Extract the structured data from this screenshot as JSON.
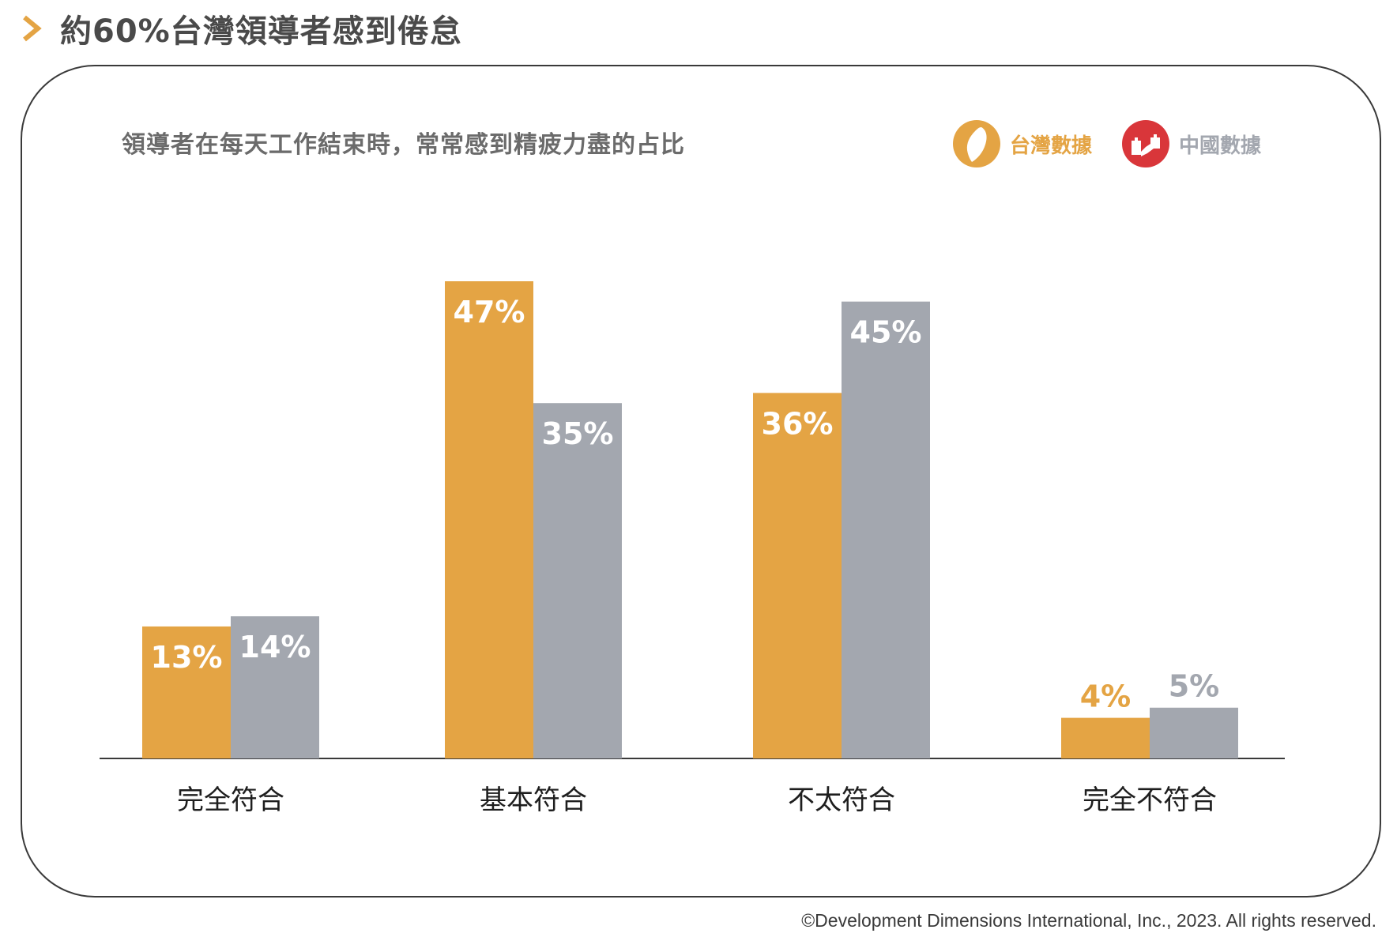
{
  "page_title": "約60%台灣領導者感到倦怠",
  "footer": {
    "copyright": "©Development Dimensions International, Inc., 2023. All rights reserved."
  },
  "icons": {
    "title_marker": "chevron-right-icon",
    "taiwan": "taiwan-map-icon",
    "china": "great-wall-icon"
  },
  "colors": {
    "taiwan": "#E4A444",
    "china": "#A3A7AF",
    "china_icon": "#D9363A",
    "axis": "#3a3a3a"
  },
  "chart_data": {
    "type": "bar",
    "title": "領導者在每天工作結束時，常常感到精疲力盡的占比",
    "xlabel": "",
    "ylabel": "",
    "categories": [
      "完全符合",
      "基本符合",
      "不太符合",
      "完全不符合"
    ],
    "series": [
      {
        "name": "台灣數據",
        "values": [
          13,
          47,
          36,
          4
        ],
        "labels": [
          "13%",
          "47%",
          "36%",
          "4%"
        ]
      },
      {
        "name": "中國數據",
        "values": [
          14,
          35,
          45,
          5
        ],
        "labels": [
          "14%",
          "35%",
          "45%",
          "5%"
        ]
      }
    ],
    "ylim": [
      0,
      47
    ],
    "grid": false,
    "legend_position": "top-right"
  }
}
